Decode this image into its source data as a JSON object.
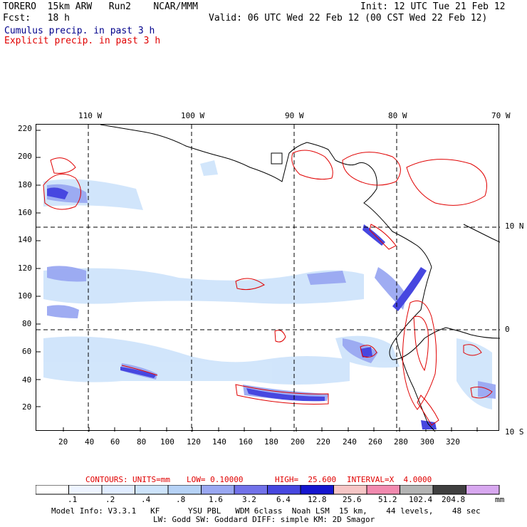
{
  "header": {
    "model": "TORERO  15km ARW   Run2    NCAR/MMM",
    "init": "Init: 12 UTC Tue 21 Feb 12",
    "fcst": "Fcst:   18 h",
    "valid": "Valid: 06 UTC Wed 22 Feb 12 (00 CST Wed 22 Feb 12)",
    "legend_cumulus": "Cumulus precip. in past 3 h",
    "legend_explicit": "Explicit precip. in past 3 h"
  },
  "colors": {
    "cumulus": "#00008b",
    "explicit": "#e00000",
    "grid": "#000000"
  },
  "map": {
    "lon_labels": [
      "110 W",
      "100 W",
      "90 W",
      "80 W",
      "70 W"
    ],
    "lat_labels": [
      "10 N",
      "0",
      "10 S"
    ],
    "y_ticks": [
      "220",
      "200",
      "180",
      "160",
      "140",
      "120",
      "100",
      "80",
      "60",
      "40",
      "20"
    ],
    "x_ticks": [
      "20",
      "40",
      "60",
      "80",
      "100",
      "120",
      "140",
      "160",
      "180",
      "200",
      "220",
      "240",
      "260",
      "280",
      "300",
      "320"
    ]
  },
  "contour_info": {
    "contours": "CONTOURS:",
    "units": "UNITS=mm",
    "low": "LOW= 0.10000",
    "high": "HIGH=  25.600",
    "interval": "INTERVAL=X  4.0000"
  },
  "colorbar": {
    "colors": [
      "#ffffff",
      "#eef4ff",
      "#e0ecff",
      "#cde3fb",
      "#b6d2f6",
      "#9aa8f2",
      "#7272ea",
      "#4747e0",
      "#1616d0",
      "#f6c6c6",
      "#f28aaf",
      "#b4b4b4",
      "#404040",
      "#d8a8f0"
    ],
    "labels": [
      ".1",
      ".2",
      ".4",
      ".8",
      "1.6",
      "3.2",
      "6.4",
      "12.8",
      "25.6",
      "51.2",
      "102.4",
      "204.8"
    ],
    "unit": "mm"
  },
  "footer": {
    "line1": "Model Info: V3.3.1   KF      YSU PBL   WDM 6class  Noah LSM  15 km,    44 levels,    48 sec",
    "line2": "LW: Godd SW: Goddard DIFF: simple KM: 2D Smagor"
  }
}
